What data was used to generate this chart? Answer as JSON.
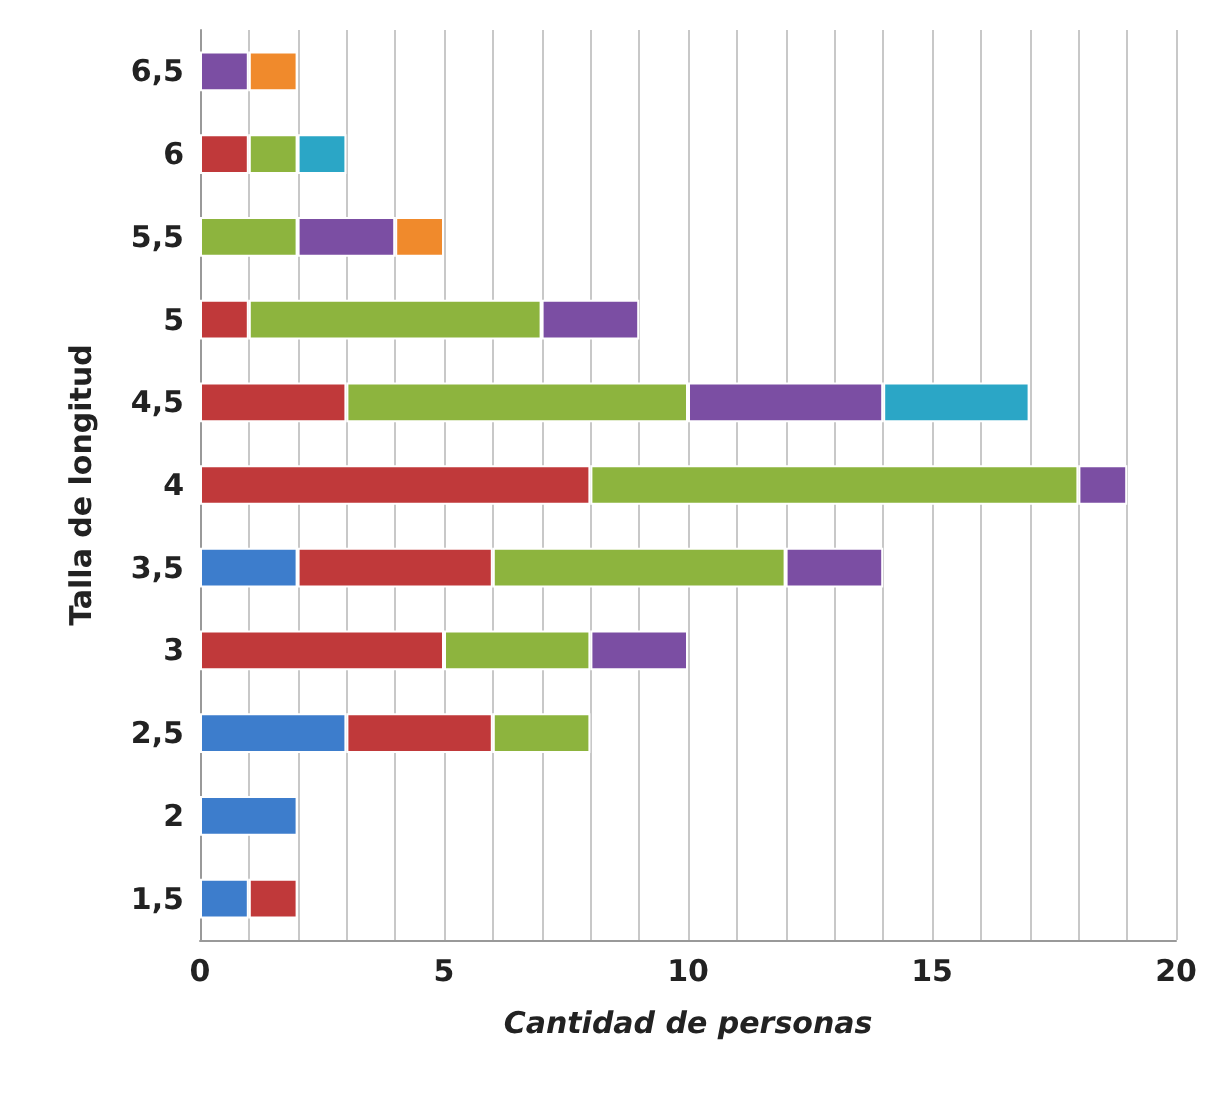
{
  "chart_data": {
    "type": "bar",
    "orientation": "horizontal",
    "stacked": true,
    "xlabel": "Cantidad de personas",
    "ylabel": "Talla de longitud",
    "categories": [
      "6,5",
      "6",
      "5,5",
      "5",
      "4,5",
      "4",
      "3,5",
      "3",
      "2,5",
      "2",
      "1,5"
    ],
    "series": [
      {
        "color": "#3d7dcc",
        "values": [
          null,
          null,
          null,
          null,
          null,
          null,
          2,
          null,
          3,
          2,
          1
        ]
      },
      {
        "color": "#c0393a",
        "values": [
          null,
          1,
          null,
          1,
          3,
          8,
          4,
          5,
          3,
          null,
          1
        ]
      },
      {
        "color": "#8db43e",
        "values": [
          null,
          1,
          2,
          6,
          7,
          10,
          6,
          3,
          2,
          null,
          null
        ]
      },
      {
        "color": "#7b4ea3",
        "values": [
          1,
          null,
          2,
          2,
          4,
          1,
          2,
          2,
          null,
          null,
          null
        ]
      },
      {
        "color": "#2ba6c6",
        "values": [
          null,
          1,
          null,
          null,
          3,
          null,
          null,
          null,
          null,
          null,
          null
        ]
      },
      {
        "color": "#f08a2c",
        "values": [
          1,
          null,
          1,
          null,
          null,
          null,
          null,
          null,
          null,
          null,
          null
        ]
      }
    ],
    "xlim": [
      0,
      20
    ],
    "xticks": [
      0,
      {
        "value": 1,
        "label": null
      },
      {
        "value": 2,
        "label": null
      },
      {
        "value": 3,
        "label": null
      },
      {
        "value": 4,
        "label": null
      },
      5,
      {
        "value": 6,
        "label": null
      },
      {
        "value": 7,
        "label": null
      },
      {
        "value": 8,
        "label": null
      },
      {
        "value": 9,
        "label": null
      },
      10,
      {
        "value": 11,
        "label": null
      },
      {
        "value": 12,
        "label": null
      },
      {
        "value": 13,
        "label": null
      },
      {
        "value": 14,
        "label": null
      },
      15,
      {
        "value": 16,
        "label": null
      },
      {
        "value": 17,
        "label": null
      },
      {
        "value": 18,
        "label": null
      },
      {
        "value": 19,
        "label": null
      },
      20
    ],
    "grid": "x"
  }
}
